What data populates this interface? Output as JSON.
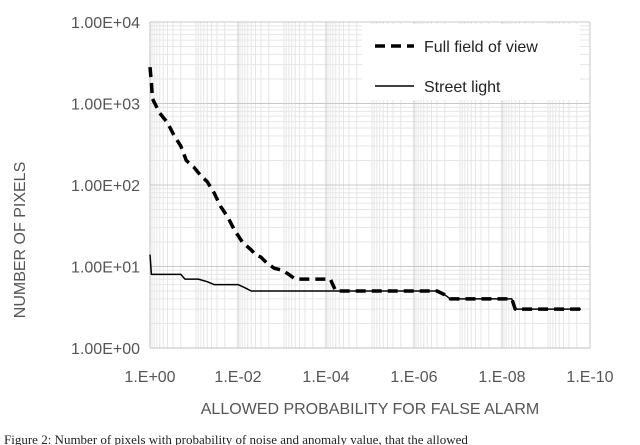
{
  "chart_data": {
    "type": "line",
    "xlabel": "ALLOWED PROBABILITY FOR FALSE ALARM",
    "ylabel": "NUMBER OF PIXELS",
    "x_scale": "log",
    "x_reversed": true,
    "y_scale": "log",
    "xlim": [
      1,
      1e-10
    ],
    "ylim": [
      1,
      10000
    ],
    "x_ticks": [
      "1.E+00",
      "1.E-02",
      "1.E-04",
      "1.E-06",
      "1.E-08",
      "1.E-10"
    ],
    "y_ticks": [
      "1.00E+00",
      "1.00E+01",
      "1.00E+02",
      "1.00E+03",
      "1.00E+04"
    ],
    "grid": true,
    "legend_position": "top-right",
    "series": [
      {
        "name": "Full field of view",
        "style": "dashed",
        "color": "#000000",
        "points": [
          [
            1,
            2800
          ],
          [
            0.93,
            1800
          ],
          [
            0.88,
            1150
          ],
          [
            0.6,
            760
          ],
          [
            0.4,
            580
          ],
          [
            0.28,
            400
          ],
          [
            0.2,
            300
          ],
          [
            0.15,
            200
          ],
          [
            0.1,
            165
          ],
          [
            0.07,
            130
          ],
          [
            0.05,
            110
          ],
          [
            0.035,
            80
          ],
          [
            0.025,
            55
          ],
          [
            0.017,
            40
          ],
          [
            0.012,
            28
          ],
          [
            0.008,
            20
          ],
          [
            0.005,
            16
          ],
          [
            0.004,
            14
          ],
          [
            0.003,
            13
          ],
          [
            0.0022,
            11
          ],
          [
            0.0015,
            9.5
          ],
          [
            0.001,
            9
          ],
          [
            0.0007,
            8
          ],
          [
            0.0005,
            7
          ],
          [
            0.0002,
            7
          ],
          [
            8e-05,
            7
          ],
          [
            7e-05,
            6
          ],
          [
            6e-05,
            5
          ],
          [
            1e-05,
            5
          ],
          [
            1e-06,
            5
          ],
          [
            3e-07,
            5
          ],
          [
            2e-07,
            4.5
          ],
          [
            1.5e-07,
            4
          ],
          [
            1e-08,
            4
          ],
          [
            6e-09,
            4
          ],
          [
            5e-09,
            3
          ],
          [
            1e-09,
            3
          ],
          [
            1.6e-10,
            3
          ]
        ]
      },
      {
        "name": "Street light",
        "style": "solid",
        "color": "#000000",
        "points": [
          [
            1,
            14
          ],
          [
            0.93,
            8
          ],
          [
            0.5,
            8
          ],
          [
            0.2,
            8
          ],
          [
            0.16,
            7
          ],
          [
            0.08,
            7
          ],
          [
            0.05,
            6.5
          ],
          [
            0.035,
            6
          ],
          [
            0.01,
            6
          ],
          [
            0.007,
            5.5
          ],
          [
            0.005,
            5
          ],
          [
            1e-05,
            5
          ],
          [
            1e-06,
            5
          ],
          [
            3e-07,
            5
          ],
          [
            2e-07,
            4.5
          ],
          [
            1.5e-07,
            4
          ],
          [
            1e-08,
            4
          ],
          [
            6e-09,
            4
          ],
          [
            5e-09,
            3
          ],
          [
            1e-09,
            3
          ],
          [
            1.6e-10,
            3
          ]
        ]
      }
    ]
  },
  "caption": "Figure 2: Number of pixels with probability of noise and anomaly value, that the allowed"
}
